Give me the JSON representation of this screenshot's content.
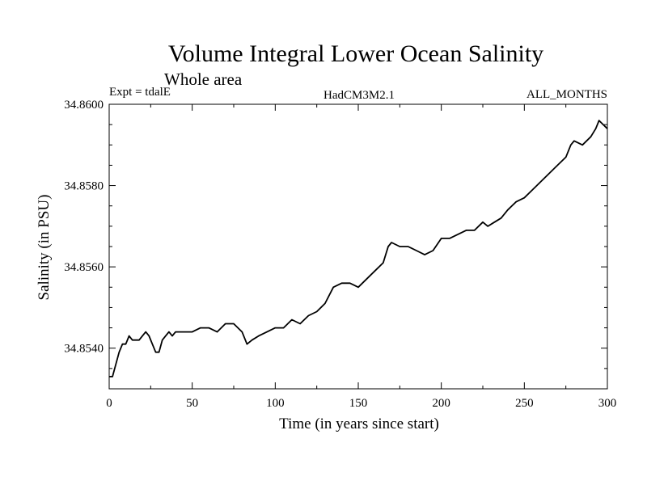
{
  "chart_data": {
    "type": "line",
    "title": "Volume Integral Lower Ocean Salinity",
    "subtitle": "Whole area",
    "experiment_label": "Expt = tdalE",
    "model_label": "HadCM3M2.1",
    "months_label": "ALL_MONTHS",
    "xlabel": "Time (in years since start)",
    "ylabel": "Salinity (in PSU)",
    "xlim": [
      0,
      300
    ],
    "ylim": [
      34.853,
      34.86
    ],
    "x_ticks": [
      0,
      50,
      100,
      150,
      200,
      250,
      300
    ],
    "x_tick_labels": [
      "0",
      "50",
      "100",
      "150",
      "200",
      "250",
      "300"
    ],
    "y_ticks": [
      34.854,
      34.856,
      34.858,
      34.86
    ],
    "y_tick_labels": [
      "34.8540",
      "34.8560",
      "34.8580",
      "34.8600"
    ],
    "grid": false,
    "series": [
      {
        "name": "Salinity",
        "color": "#000000",
        "x": [
          0,
          2,
          4,
          6,
          8,
          10,
          12,
          14,
          16,
          18,
          20,
          22,
          24,
          26,
          28,
          30,
          32,
          34,
          36,
          38,
          40,
          45,
          50,
          55,
          60,
          65,
          70,
          75,
          80,
          83,
          86,
          90,
          95,
          100,
          105,
          110,
          115,
          120,
          125,
          130,
          135,
          140,
          145,
          150,
          155,
          160,
          165,
          168,
          170,
          175,
          180,
          185,
          190,
          195,
          200,
          205,
          210,
          215,
          220,
          225,
          228,
          232,
          236,
          240,
          245,
          250,
          255,
          260,
          265,
          270,
          275,
          278,
          280,
          285,
          290,
          293,
          295,
          300
        ],
        "values": [
          34.8533,
          34.8533,
          34.8536,
          34.8539,
          34.8541,
          34.8541,
          34.8543,
          34.8542,
          34.8542,
          34.8542,
          34.8543,
          34.8544,
          34.8543,
          34.8541,
          34.8539,
          34.8539,
          34.8542,
          34.8543,
          34.8544,
          34.8543,
          34.8544,
          34.8544,
          34.8544,
          34.8545,
          34.8545,
          34.8544,
          34.8546,
          34.8546,
          34.8544,
          34.8541,
          34.8542,
          34.8543,
          34.8544,
          34.8545,
          34.8545,
          34.8547,
          34.8546,
          34.8548,
          34.8549,
          34.8551,
          34.8555,
          34.8556,
          34.8556,
          34.8555,
          34.8557,
          34.8559,
          34.8561,
          34.8565,
          34.8566,
          34.8565,
          34.8565,
          34.8564,
          34.8563,
          34.8564,
          34.8567,
          34.8567,
          34.8568,
          34.8569,
          34.8569,
          34.8571,
          34.857,
          34.8571,
          34.8572,
          34.8574,
          34.8576,
          34.8577,
          34.8579,
          34.8581,
          34.8583,
          34.8585,
          34.8587,
          34.859,
          34.8591,
          34.859,
          34.8592,
          34.8594,
          34.8596,
          34.8594
        ]
      }
    ]
  }
}
